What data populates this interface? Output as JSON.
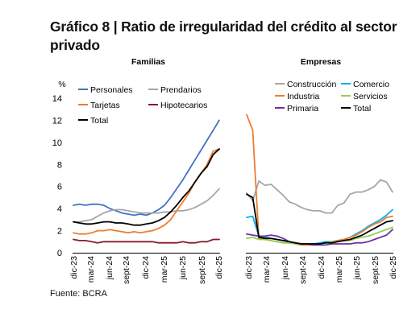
{
  "page": {
    "title": "Gráfico 8 | Ratio de irregularidad del crédito al sector privado",
    "source": "Fuente: BCRA"
  },
  "chart_data": [
    {
      "type": "line",
      "title": "Familias",
      "unit_label": "%",
      "ylim": [
        0,
        14
      ],
      "yticks": [
        0,
        2,
        4,
        6,
        8,
        10,
        12,
        14
      ],
      "x_tick_labels": [
        "dic-23",
        "mar-24",
        "jun-24",
        "sept-24",
        "dic-24",
        "mar-25",
        "jun-25",
        "sept-25",
        "dic-25"
      ],
      "x": [
        "dic-23",
        "ene-24",
        "feb-24",
        "mar-24",
        "abr-24",
        "may-24",
        "jun-24",
        "jul-24",
        "ago-24",
        "sept-24",
        "oct-24",
        "nov-24",
        "dic-24",
        "ene-25",
        "feb-25",
        "mar-25",
        "abr-25",
        "may-25",
        "jun-25",
        "jul-25",
        "ago-25",
        "sept-25",
        "oct-25",
        "nov-25",
        "dic-25"
      ],
      "legend_columns": 2,
      "series": [
        {
          "name": "Personales",
          "color": "#4472C4",
          "values": [
            4.3,
            4.4,
            4.3,
            4.4,
            4.4,
            4.3,
            4.0,
            3.8,
            3.6,
            3.5,
            3.4,
            3.5,
            3.4,
            3.6,
            3.9,
            4.3,
            5.0,
            5.8,
            6.6,
            7.5,
            8.4,
            9.3,
            10.2,
            11.1,
            12.0
          ]
        },
        {
          "name": "Prendarios",
          "color": "#A6A6A6",
          "values": [
            2.8,
            2.8,
            2.9,
            3.0,
            3.3,
            3.6,
            3.8,
            3.9,
            3.9,
            3.8,
            3.7,
            3.6,
            3.6,
            3.6,
            3.6,
            3.7,
            3.7,
            3.8,
            3.8,
            3.9,
            4.1,
            4.4,
            4.7,
            5.2,
            5.8
          ]
        },
        {
          "name": "Tarjetas",
          "color": "#ED7D31",
          "values": [
            1.8,
            1.7,
            1.7,
            1.8,
            2.0,
            2.0,
            2.1,
            2.0,
            1.9,
            1.8,
            1.9,
            1.8,
            1.9,
            2.0,
            2.2,
            2.5,
            3.0,
            3.8,
            4.6,
            5.4,
            6.4,
            7.2,
            8.0,
            9.2,
            9.4
          ]
        },
        {
          "name": "Hipotecarios",
          "color": "#8B1A2B",
          "values": [
            1.2,
            1.1,
            1.1,
            1.0,
            0.9,
            1.0,
            1.0,
            1.0,
            1.0,
            1.0,
            1.0,
            1.0,
            1.0,
            1.0,
            0.9,
            0.9,
            0.9,
            0.9,
            1.0,
            0.9,
            0.9,
            1.0,
            1.0,
            1.2,
            1.2
          ]
        },
        {
          "name": "Total",
          "color": "#000000",
          "values": [
            2.8,
            2.7,
            2.6,
            2.6,
            2.7,
            2.8,
            2.8,
            2.7,
            2.7,
            2.6,
            2.5,
            2.5,
            2.6,
            2.7,
            2.9,
            3.2,
            3.7,
            4.3,
            5.0,
            5.6,
            6.4,
            7.2,
            7.8,
            8.9,
            9.4
          ]
        }
      ]
    },
    {
      "type": "line",
      "title": "Empresas",
      "ylim": [
        0,
        14
      ],
      "x_tick_labels": [
        "dic-23",
        "mar-24",
        "jun-24",
        "sept-24",
        "dic-24",
        "mar-25",
        "jun-25",
        "sept-25",
        "dic-25"
      ],
      "x": [
        "dic-23",
        "ene-24",
        "feb-24",
        "mar-24",
        "abr-24",
        "may-24",
        "jun-24",
        "jul-24",
        "ago-24",
        "sept-24",
        "oct-24",
        "nov-24",
        "dic-24",
        "ene-25",
        "feb-25",
        "mar-25",
        "abr-25",
        "may-25",
        "jun-25",
        "jul-25",
        "ago-25",
        "sept-25",
        "oct-25",
        "nov-25",
        "dic-25"
      ],
      "legend_columns": 2,
      "series": [
        {
          "name": "Construcción",
          "color": "#A6A6A6",
          "values": [
            5.4,
            4.7,
            6.5,
            6.1,
            6.2,
            5.7,
            5.2,
            4.6,
            4.4,
            4.1,
            3.9,
            3.8,
            3.8,
            3.6,
            3.6,
            4.3,
            4.5,
            5.3,
            5.5,
            5.5,
            5.7,
            6.0,
            6.6,
            6.4,
            5.5
          ]
        },
        {
          "name": "Comercio",
          "color": "#00B0F0",
          "values": [
            3.2,
            3.3,
            1.5,
            1.4,
            1.3,
            1.2,
            1.1,
            1.0,
            0.9,
            0.8,
            0.8,
            0.8,
            0.9,
            1.0,
            1.0,
            1.1,
            1.2,
            1.4,
            1.7,
            2.0,
            2.4,
            2.7,
            3.0,
            3.4,
            3.9
          ]
        },
        {
          "name": "Industria",
          "color": "#ED7D31",
          "values": [
            12.5,
            11.1,
            1.3,
            1.2,
            1.1,
            1.0,
            0.9,
            0.9,
            0.8,
            0.7,
            0.7,
            0.7,
            0.8,
            0.9,
            1.0,
            1.1,
            1.2,
            1.4,
            1.6,
            1.9,
            2.3,
            2.6,
            2.8,
            3.2,
            3.3
          ]
        },
        {
          "name": "Servicios",
          "color": "#92D050",
          "values": [
            1.3,
            1.4,
            1.2,
            1.2,
            1.1,
            1.0,
            0.9,
            0.9,
            0.8,
            0.8,
            0.8,
            0.8,
            0.8,
            0.9,
            1.0,
            1.0,
            1.1,
            1.1,
            1.3,
            1.4,
            1.5,
            1.7,
            1.9,
            2.1,
            2.3
          ]
        },
        {
          "name": "Primaria",
          "color": "#7030A0",
          "values": [
            1.7,
            1.6,
            1.5,
            1.5,
            1.6,
            1.5,
            1.3,
            1.0,
            0.9,
            0.8,
            0.8,
            0.7,
            0.7,
            0.7,
            0.8,
            0.8,
            0.8,
            0.8,
            0.9,
            0.9,
            1.0,
            1.2,
            1.4,
            1.6,
            2.1
          ]
        },
        {
          "name": "Total",
          "color": "#000000",
          "values": [
            5.3,
            5.0,
            1.4,
            1.3,
            1.3,
            1.2,
            1.1,
            1.0,
            0.9,
            0.8,
            0.8,
            0.8,
            0.8,
            0.9,
            0.9,
            1.0,
            1.1,
            1.2,
            1.4,
            1.6,
            1.9,
            2.2,
            2.5,
            2.8,
            2.9
          ]
        }
      ]
    }
  ]
}
